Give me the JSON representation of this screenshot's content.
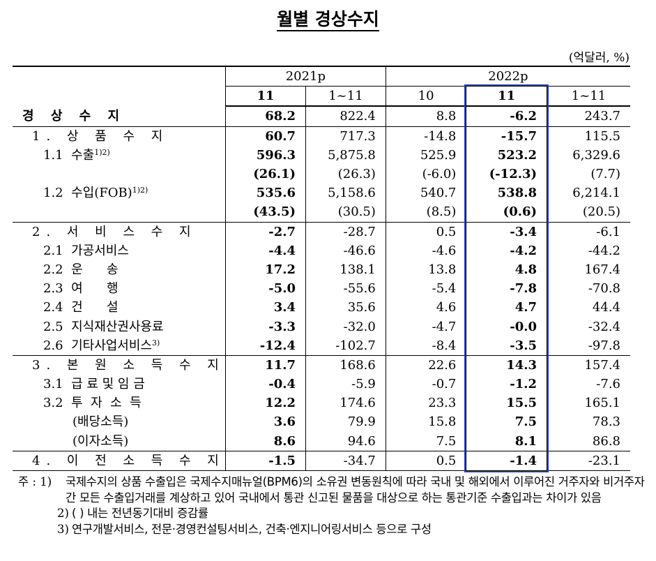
{
  "title": "월별 경상수지",
  "unit": "(억달러, %)",
  "header": {
    "years": [
      "2021p",
      "2022p"
    ],
    "months": [
      "11",
      "1~11",
      "10",
      "11",
      "1~11"
    ]
  },
  "rows": [
    {
      "label": "경 상 수 지",
      "values": [
        "68.2",
        "822.4",
        "8.8",
        "-6.2",
        "243.7"
      ]
    },
    {
      "label": "1. 상 품 수 지",
      "values": [
        "60.7",
        "717.3",
        "-14.8",
        "-15.7",
        "115.5"
      ]
    },
    {
      "label": "1.1  수출",
      "sup": "1)2)",
      "values": [
        "596.3",
        "5,875.8",
        "525.9",
        "523.2",
        "6,329.6"
      ]
    },
    {
      "label": "",
      "values": [
        "(26.1)",
        "(26.3)",
        "(-6.0)",
        "(-12.3)",
        "(7.7)"
      ]
    },
    {
      "label": "1.2  수입(FOB)",
      "sup": "1)2)",
      "values": [
        "535.6",
        "5,158.6",
        "540.7",
        "538.8",
        "6,214.1"
      ]
    },
    {
      "label": "",
      "values": [
        "(43.5)",
        "(30.5)",
        "(8.5)",
        "(0.6)",
        "(20.5)"
      ]
    },
    {
      "label": "2. 서 비 스 수 지",
      "values": [
        "-2.7",
        "-28.7",
        "0.5",
        "-3.4",
        "-6.1"
      ]
    },
    {
      "label": "2.1  가공서비스",
      "values": [
        "-4.4",
        "-46.6",
        "-4.6",
        "-4.2",
        "-44.2"
      ]
    },
    {
      "label": "2.2  운      송",
      "values": [
        "17.2",
        "138.1",
        "13.8",
        "4.8",
        "167.4"
      ]
    },
    {
      "label": "2.3  여      행",
      "values": [
        "-5.0",
        "-55.6",
        "-5.4",
        "-7.8",
        "-70.8"
      ]
    },
    {
      "label": "2.4  건      설",
      "values": [
        "3.4",
        "35.6",
        "4.6",
        "4.7",
        "44.4"
      ]
    },
    {
      "label": "2.5  지식재산권사용료",
      "values": [
        "-3.3",
        "-32.0",
        "-4.7",
        "-0.0",
        "-32.4"
      ]
    },
    {
      "label": "2.6  기타사업서비스",
      "sup": "3)",
      "values": [
        "-12.4",
        "-102.7",
        "-8.4",
        "-3.5",
        "-97.8"
      ]
    },
    {
      "label": "3. 본 원 소 득 수 지",
      "values": [
        "11.7",
        "168.6",
        "22.6",
        "14.3",
        "157.4"
      ]
    },
    {
      "label": "3.1  급 료 및 임 금",
      "values": [
        "-0.4",
        "-5.9",
        "-0.7",
        "-1.2",
        "-7.6"
      ]
    },
    {
      "label": "3.2  투  자  소  득",
      "values": [
        "12.2",
        "174.6",
        "23.3",
        "15.5",
        "165.1"
      ]
    },
    {
      "label": "(배당소득)",
      "values": [
        "3.6",
        "79.9",
        "15.8",
        "7.5",
        "78.3"
      ]
    },
    {
      "label": "(이자소득)",
      "values": [
        "8.6",
        "94.6",
        "7.5",
        "8.1",
        "86.8"
      ]
    },
    {
      "label": "4. 이 전 소 득 수 지",
      "values": [
        "-1.5",
        "-34.7",
        "0.5",
        "-1.4",
        "-23.1"
      ]
    }
  ],
  "notes": [
    {
      "mark": "주 : 1)",
      "text": "국제수지의 상품 수출입은 국제수지매뉴얼(BPM6)의 소유권 변동원칙에 따라 국내 및 해외에서 이루어진 거주자와 비거주자 간 모든 수출입거래를 계상하고 있어 국내에서 통관 신고된 물품을 대상으로 하는 통관기준 수출입과는 차이가 있음"
    },
    {
      "mark": "2)",
      "text": "(   ) 내는 전년동기대비 증감률"
    },
    {
      "mark": "3)",
      "text": "연구개발서비스, 전문·경영컨설팅서비스, 건축·엔지니어링서비스 등으로 구성"
    }
  ]
}
